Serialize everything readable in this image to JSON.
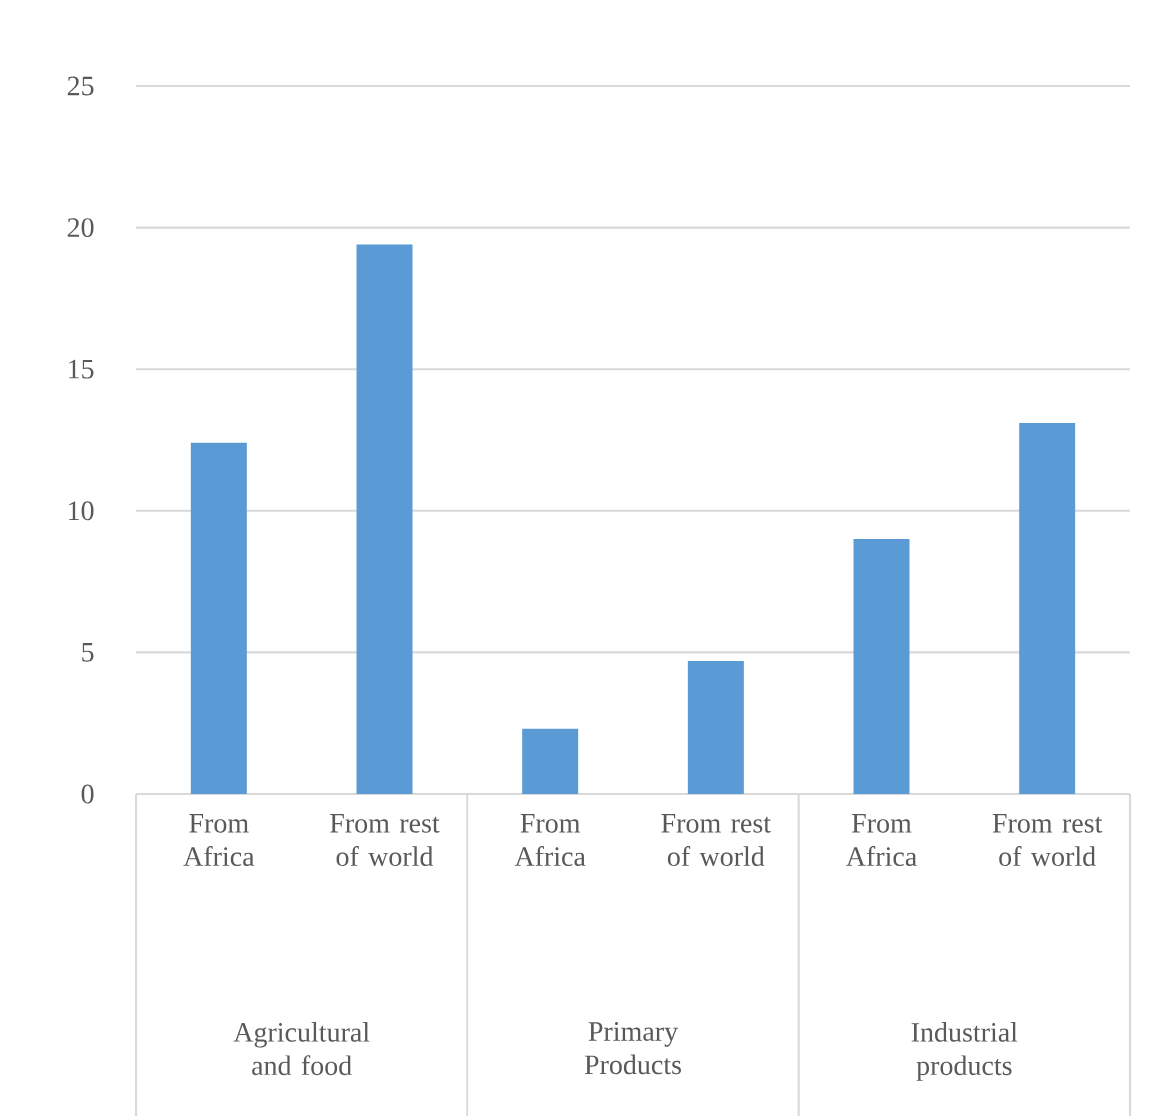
{
  "chart_data": {
    "type": "bar",
    "categories": [
      "From Africa",
      "From rest of world",
      "From Africa",
      "From rest of world",
      "From Africa",
      "From rest of world"
    ],
    "values": [
      12.4,
      19.4,
      2.3,
      4.7,
      9.0,
      13.1
    ],
    "color": "#5b9bd5",
    "ylim": [
      0,
      25
    ],
    "yticks": [
      0,
      5,
      10,
      15,
      20,
      25
    ],
    "grid": "y",
    "annotations": [
      "Agricultural and food",
      "Primary Products",
      "Industrial products"
    ]
  }
}
